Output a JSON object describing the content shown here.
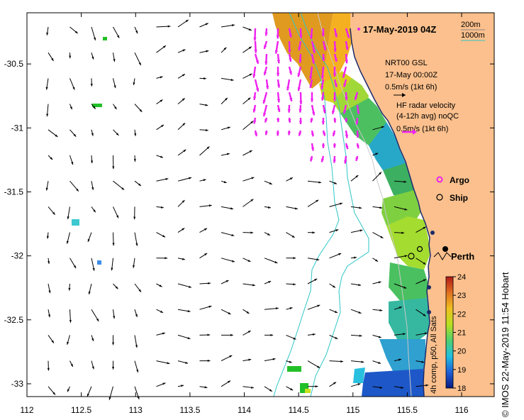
{
  "title": "17-May-2019 04Z",
  "credit": "© IMOS 22-May-2019 11:54 Hobart",
  "axes": {
    "x_ticks": [
      "112",
      "112.5",
      "113",
      "113.5",
      "114",
      "114.5",
      "115",
      "115.5",
      "116"
    ],
    "y_ticks": [
      "-30.5",
      "-31",
      "-31.5",
      "-32",
      "-32.5",
      "-33"
    ],
    "x_range": [
      112,
      116.3
    ],
    "y_range": [
      -33.1,
      -30.1
    ]
  },
  "depth_legend": {
    "label_200": "200m",
    "label_1000": "1000m",
    "color_200": "#888888",
    "color_1000": "#2fc6c6"
  },
  "gsl_legend": {
    "line1": "NRT00 GSL",
    "line2": "17-May 00:00Z",
    "line3": "0.5m/s (1kt 6h)"
  },
  "hf_legend": {
    "line1": "HF radar velocity",
    "line2": "(4-12h avg) noQC",
    "line3": "0.5m/s (1kt 6h)",
    "color": "#ee22ee"
  },
  "markers": {
    "argo_label": "Argo",
    "ship_label": "Ship",
    "city_label": "Perth",
    "argo_color": "#ee22ee"
  },
  "colorbar": {
    "label": "4h comp, p50, All Sats",
    "ticks": [
      "18",
      "19",
      "20",
      "21",
      "22",
      "23",
      "24"
    ],
    "min": 18,
    "max": 24,
    "stops": [
      "#0a1a80",
      "#1f5fd8",
      "#1fc0e0",
      "#4fd070",
      "#b8e020",
      "#f0c020",
      "#e07020",
      "#b01818"
    ]
  },
  "colors": {
    "land": "#fbc08d",
    "ocean": "#ffffff",
    "coast": "#1a2a6a"
  }
}
